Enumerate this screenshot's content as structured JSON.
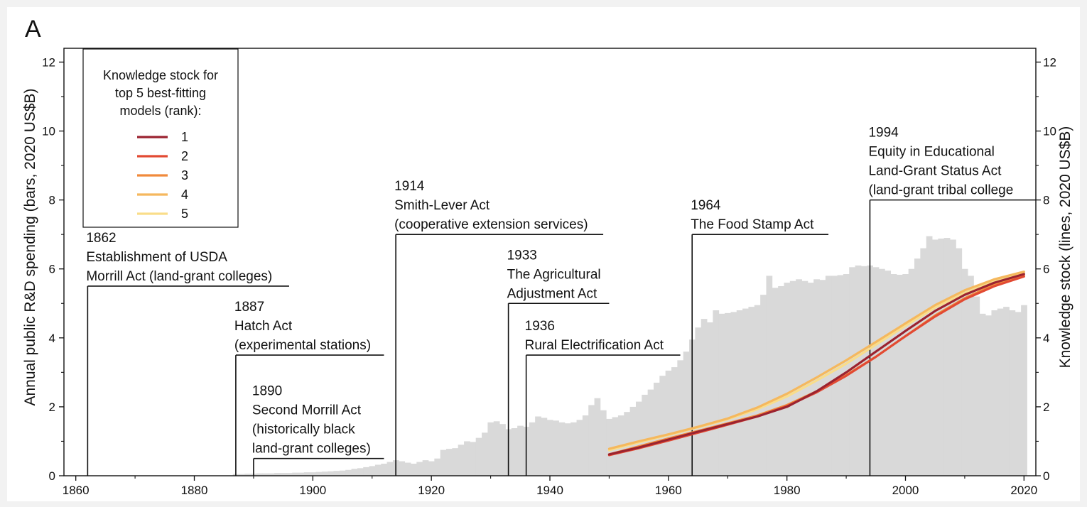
{
  "panel_label": "A",
  "chart_data": {
    "type": "bar",
    "ylabel_left": "Annual public R&D spending (bars, 2020 US$B)",
    "ylabel_right": "Knowledge stock (lines, 2020 US$B)",
    "xlim": [
      1858,
      2022
    ],
    "ylim": [
      0,
      12.4
    ],
    "x_ticks": [
      "1860",
      "1880",
      "1900",
      "1920",
      "1940",
      "1960",
      "1980",
      "2000",
      "2020"
    ],
    "y_ticks": [
      "0",
      "2",
      "4",
      "6",
      "8",
      "10",
      "12"
    ],
    "bar_color": "#d9d9d9",
    "spending": {
      "name": "Annual public R&D spending",
      "years": [
        1887,
        1888,
        1889,
        1890,
        1891,
        1892,
        1893,
        1894,
        1895,
        1896,
        1897,
        1898,
        1899,
        1900,
        1901,
        1902,
        1903,
        1904,
        1905,
        1906,
        1907,
        1908,
        1909,
        1910,
        1911,
        1912,
        1913,
        1914,
        1915,
        1916,
        1917,
        1918,
        1919,
        1920,
        1921,
        1922,
        1923,
        1924,
        1925,
        1926,
        1927,
        1928,
        1929,
        1930,
        1931,
        1932,
        1933,
        1934,
        1935,
        1936,
        1937,
        1938,
        1939,
        1940,
        1941,
        1942,
        1943,
        1944,
        1945,
        1946,
        1947,
        1948,
        1949,
        1950,
        1951,
        1952,
        1953,
        1954,
        1955,
        1956,
        1957,
        1958,
        1959,
        1960,
        1961,
        1962,
        1963,
        1964,
        1965,
        1966,
        1967,
        1968,
        1969,
        1970,
        1971,
        1972,
        1973,
        1974,
        1975,
        1976,
        1977,
        1978,
        1979,
        1980,
        1981,
        1982,
        1983,
        1984,
        1985,
        1986,
        1987,
        1988,
        1989,
        1990,
        1991,
        1992,
        1993,
        1994,
        1995,
        1996,
        1997,
        1998,
        1999,
        2000,
        2001,
        2002,
        2003,
        2004,
        2005,
        2006,
        2007,
        2008,
        2009,
        2010,
        2011,
        2012,
        2013,
        2014,
        2015,
        2016,
        2017,
        2018,
        2019,
        2020
      ],
      "values": [
        0.05,
        0.05,
        0.06,
        0.06,
        0.07,
        0.07,
        0.07,
        0.08,
        0.08,
        0.08,
        0.09,
        0.09,
        0.1,
        0.1,
        0.11,
        0.12,
        0.13,
        0.14,
        0.15,
        0.17,
        0.2,
        0.22,
        0.25,
        0.28,
        0.32,
        0.35,
        0.4,
        0.45,
        0.42,
        0.38,
        0.35,
        0.4,
        0.45,
        0.42,
        0.5,
        0.75,
        0.78,
        0.8,
        0.9,
        1.0,
        0.98,
        1.1,
        1.25,
        1.55,
        1.58,
        1.5,
        1.35,
        1.38,
        1.45,
        1.42,
        1.55,
        1.72,
        1.68,
        1.62,
        1.6,
        1.55,
        1.52,
        1.55,
        1.62,
        1.75,
        2.05,
        2.25,
        1.9,
        1.65,
        1.7,
        1.75,
        1.85,
        2.0,
        2.15,
        2.35,
        2.5,
        2.7,
        2.9,
        3.05,
        3.15,
        3.35,
        3.6,
        3.95,
        4.3,
        4.55,
        4.45,
        4.8,
        4.7,
        4.72,
        4.75,
        4.8,
        4.85,
        4.9,
        4.95,
        5.25,
        5.8,
        5.45,
        5.5,
        5.6,
        5.65,
        5.7,
        5.65,
        5.6,
        5.7,
        5.68,
        5.8,
        5.8,
        5.82,
        5.85,
        6.05,
        6.1,
        6.08,
        6.1,
        6.05,
        6.0,
        5.95,
        5.85,
        5.83,
        5.85,
        6.0,
        6.3,
        6.6,
        6.95,
        6.85,
        6.88,
        6.9,
        6.85,
        6.6,
        6.0,
        5.8,
        5.2,
        4.7,
        4.65,
        4.8,
        4.85,
        4.9,
        4.8,
        4.75,
        4.95
      ]
    },
    "knowledge_stock": {
      "legend_title": "Knowledge stock for top 5 best-fitting models (rank):",
      "years": [
        1950,
        1955,
        1960,
        1965,
        1970,
        1975,
        1980,
        1985,
        1990,
        1995,
        2000,
        2005,
        2010,
        2015,
        2020
      ],
      "series": [
        {
          "name": "1",
          "color": "#9b2330",
          "values": [
            0.62,
            0.82,
            1.05,
            1.28,
            1.5,
            1.72,
            2.0,
            2.45,
            3.0,
            3.6,
            4.2,
            4.78,
            5.25,
            5.6,
            5.85
          ]
        },
        {
          "name": "2",
          "color": "#e24a33",
          "values": [
            0.6,
            0.8,
            1.02,
            1.25,
            1.48,
            1.72,
            2.02,
            2.42,
            2.9,
            3.45,
            4.05,
            4.62,
            5.12,
            5.5,
            5.78
          ]
        },
        {
          "name": "3",
          "color": "#f08a3c",
          "values": [
            0.62,
            0.85,
            1.08,
            1.3,
            1.52,
            1.75,
            2.05,
            2.45,
            2.92,
            3.45,
            4.05,
            4.65,
            5.15,
            5.55,
            5.8
          ]
        },
        {
          "name": "4",
          "color": "#f5b85e",
          "values": [
            0.78,
            1.0,
            1.2,
            1.42,
            1.66,
            1.98,
            2.38,
            2.85,
            3.35,
            3.88,
            4.42,
            4.95,
            5.38,
            5.7,
            5.92
          ]
        },
        {
          "name": "5",
          "color": "#f9dd8a",
          "values": [
            0.74,
            0.97,
            1.18,
            1.4,
            1.64,
            1.93,
            2.3,
            2.76,
            3.25,
            3.8,
            4.35,
            4.88,
            5.3,
            5.65,
            5.88
          ]
        }
      ]
    },
    "annotations": [
      {
        "id": "1862",
        "year": 1862,
        "line_top": 5.5,
        "shelf_end": 1896,
        "lines": [
          "1862",
          "Establishment of USDA",
          "Morrill Act (land-grant colleges)"
        ]
      },
      {
        "id": "1887",
        "year": 1887,
        "line_top": 3.5,
        "shelf_end": 1912,
        "lines": [
          "1887",
          "Hatch Act",
          "(experimental stations)"
        ]
      },
      {
        "id": "1890",
        "year": 1890,
        "line_top": 0.5,
        "shelf_end": 1912,
        "lines": [
          "1890",
          "Second Morrill Act",
          "(historically black",
          "land-grant colleges)"
        ]
      },
      {
        "id": "1914",
        "year": 1914,
        "line_top": 7.0,
        "shelf_end": 1949,
        "lines": [
          "1914",
          "Smith-Lever Act",
          "(cooperative extension services)"
        ]
      },
      {
        "id": "1933",
        "year": 1933,
        "line_top": 5.0,
        "shelf_end": 1950,
        "lines": [
          "1933",
          "The Agricultural",
          "Adjustment Act"
        ]
      },
      {
        "id": "1936",
        "year": 1936,
        "line_top": 3.5,
        "shelf_end": 1962,
        "lines": [
          "1936",
          "Rural Electrification Act"
        ]
      },
      {
        "id": "1964",
        "year": 1964,
        "line_top": 7.0,
        "shelf_end": 1987,
        "lines": [
          "1964",
          "The Food Stamp Act"
        ]
      },
      {
        "id": "1994",
        "year": 1994,
        "line_top": 8.0,
        "shelf_end": 2022,
        "lines": [
          "1994",
          "Equity in Educational",
          "Land-Grant Status Act",
          "(land-grant tribal college"
        ]
      }
    ]
  }
}
